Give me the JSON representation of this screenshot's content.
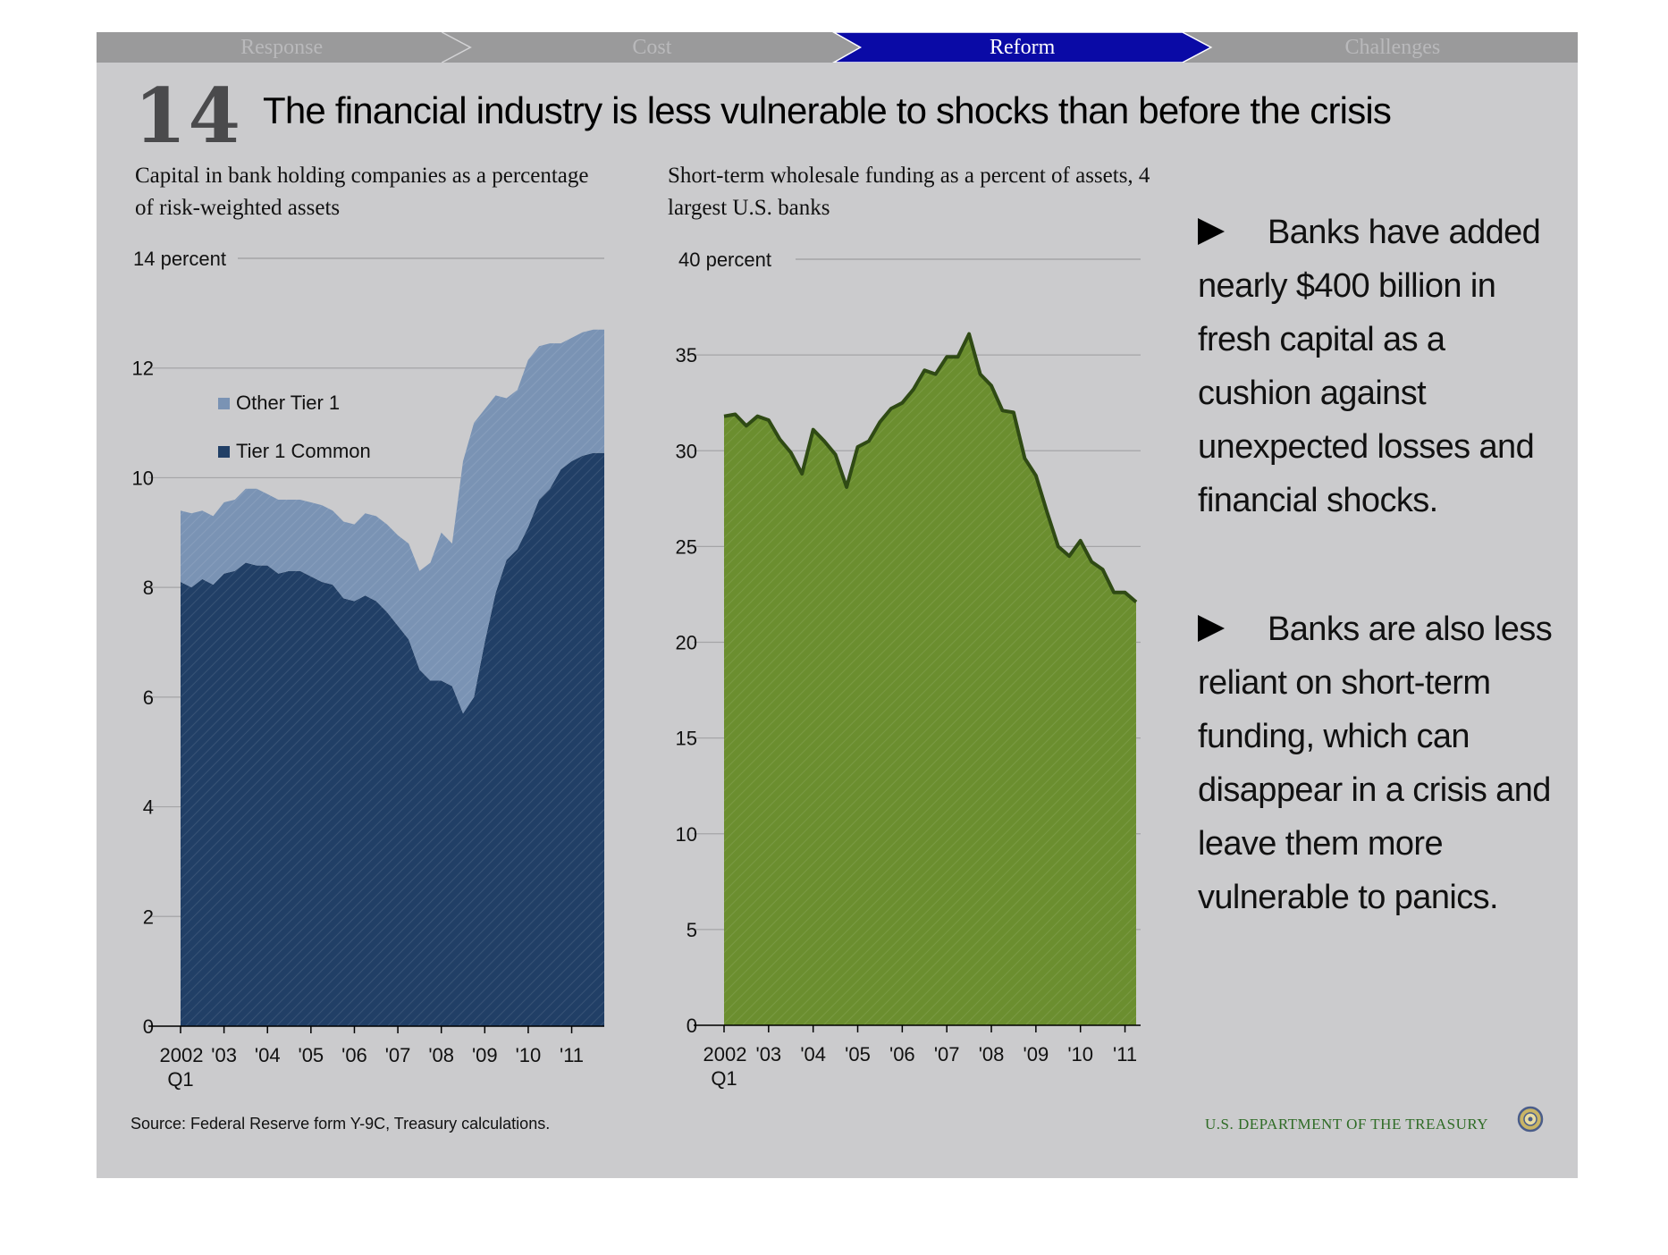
{
  "nav": {
    "tabs": [
      {
        "label": "Response"
      },
      {
        "label": "Cost"
      },
      {
        "label": "Reform"
      },
      {
        "label": "Challenges"
      }
    ],
    "active_index": 2,
    "active_color": "#0a0aa6"
  },
  "slide": {
    "number": "14",
    "title": "The financial industry is less vulnerable to shocks than before the crisis"
  },
  "bullets": [
    "Banks have added nearly  $400 billion in fresh capital as a cushion against unexpected losses and financial shocks.",
    "Banks are also less reliant on short-term funding, which can disappear in a crisis and leave them more vulnerable to panics."
  ],
  "footer": {
    "source": "Source: Federal Reserve form Y-9C, Treasury calculations.",
    "agency": "U.S. DEPARTMENT OF THE TREASURY"
  },
  "chart_data": [
    {
      "type": "area",
      "title": "Capital in bank holding companies as a percentage of risk-weighted assets",
      "ylabel_top": "14 percent",
      "ylim": [
        0,
        14
      ],
      "yticks": [
        "0",
        "2",
        "4",
        "6",
        "8",
        "10",
        "12"
      ],
      "xticks": [
        "2002",
        "'03",
        "'04",
        "'05",
        "'06",
        "'07",
        "'08",
        "'09",
        "'10",
        "'11"
      ],
      "xtick_sub": "Q1",
      "stacked": true,
      "legend_position": "top-left",
      "x_quarters": [
        "2002Q1",
        "2002Q2",
        "2002Q3",
        "2002Q4",
        "2003Q1",
        "2003Q2",
        "2003Q3",
        "2003Q4",
        "2004Q1",
        "2004Q2",
        "2004Q3",
        "2004Q4",
        "2005Q1",
        "2005Q2",
        "2005Q3",
        "2005Q4",
        "2006Q1",
        "2006Q2",
        "2006Q3",
        "2006Q4",
        "2007Q1",
        "2007Q2",
        "2007Q3",
        "2007Q4",
        "2008Q1",
        "2008Q2",
        "2008Q3",
        "2008Q4",
        "2009Q1",
        "2009Q2",
        "2009Q3",
        "2009Q4",
        "2010Q1",
        "2010Q2",
        "2010Q3",
        "2010Q4",
        "2011Q1",
        "2011Q2",
        "2011Q3",
        "2011Q4"
      ],
      "series": [
        {
          "name": "Tier 1 Common",
          "color": "#213f66",
          "values": [
            8.1,
            8.0,
            8.15,
            8.05,
            8.25,
            8.3,
            8.45,
            8.4,
            8.4,
            8.25,
            8.3,
            8.3,
            8.2,
            8.1,
            8.05,
            7.8,
            7.75,
            7.85,
            7.75,
            7.55,
            7.3,
            7.05,
            6.5,
            6.3,
            6.3,
            6.2,
            5.7,
            6.0,
            7.0,
            7.9,
            8.5,
            8.7,
            9.1,
            9.6,
            9.8,
            10.15,
            10.3,
            10.4,
            10.45,
            10.45
          ]
        },
        {
          "name": "Other Tier 1",
          "color": "#7a93b4",
          "values": [
            1.3,
            1.35,
            1.25,
            1.25,
            1.3,
            1.3,
            1.35,
            1.4,
            1.3,
            1.35,
            1.3,
            1.3,
            1.35,
            1.4,
            1.35,
            1.4,
            1.4,
            1.5,
            1.55,
            1.6,
            1.65,
            1.75,
            1.8,
            2.15,
            2.7,
            2.6,
            4.6,
            5.0,
            4.25,
            3.6,
            2.95,
            2.9,
            3.05,
            2.8,
            2.65,
            2.3,
            2.25,
            2.25,
            2.25,
            2.25
          ]
        }
      ]
    },
    {
      "type": "area",
      "title": "Short-term wholesale funding as a percent of assets, 4 largest U.S. banks",
      "ylabel_top": "40 percent",
      "ylim": [
        0,
        40
      ],
      "yticks": [
        "0",
        "5",
        "10",
        "15",
        "20",
        "25",
        "30",
        "35"
      ],
      "xticks": [
        "2002",
        "'03",
        "'04",
        "'05",
        "'06",
        "'07",
        "'08",
        "'09",
        "'10",
        "'11"
      ],
      "xtick_sub": "Q1",
      "series": [
        {
          "color": "#6b8e2f",
          "line_color": "#2f4a14",
          "values": [
            31.8,
            31.9,
            31.3,
            31.8,
            31.6,
            30.6,
            29.9,
            28.8,
            31.1,
            30.5,
            29.8,
            28.1,
            30.2,
            30.5,
            31.5,
            32.2,
            32.5,
            33.2,
            34.2,
            34.0,
            34.9,
            34.9,
            36.1,
            34.0,
            33.4,
            32.1,
            32.0,
            29.6,
            28.7,
            26.8,
            25.0,
            24.5,
            25.3,
            24.2,
            23.8,
            22.6,
            22.6,
            22.1
          ]
        }
      ]
    }
  ]
}
